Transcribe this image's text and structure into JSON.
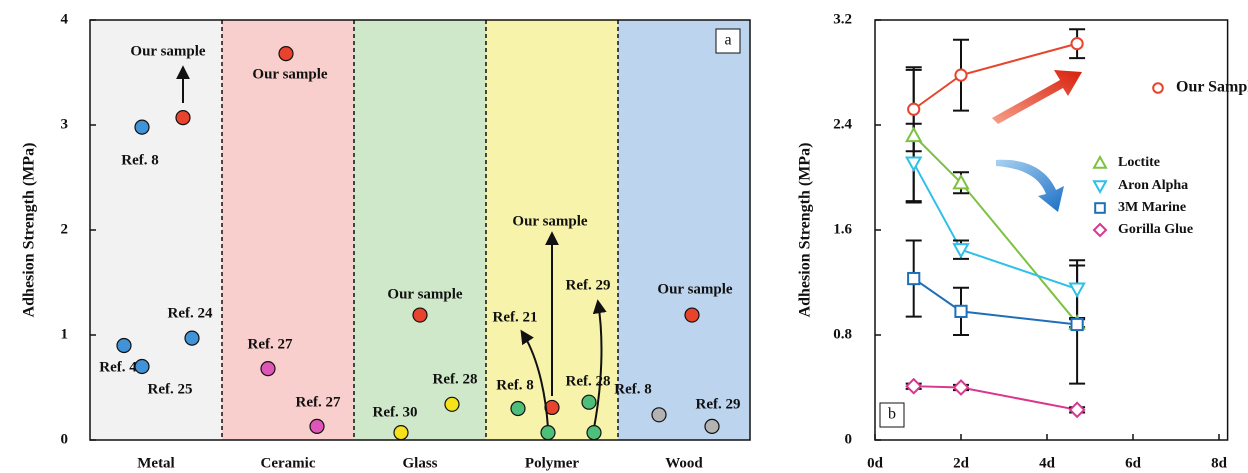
{
  "chart_data": [
    {
      "type": "strip",
      "panel_label": "a",
      "y_label": "Adhesion Strength (MPa)",
      "ylim": [
        0,
        4
      ],
      "yticks": [
        0,
        1,
        2,
        3,
        4
      ],
      "groups": [
        {
          "name": "Metal",
          "color": "#f2f2f2",
          "points": [
            {
              "label": "Ref. 8",
              "value": 2.98,
              "color": "#3f93d6"
            },
            {
              "label": "Our sample",
              "value": 3.07,
              "color": "#e8432c"
            },
            {
              "label": "Ref. 4",
              "value": 0.9,
              "color": "#3f93d6"
            },
            {
              "label": "Ref. 25",
              "value": 0.7,
              "color": "#3f93d6"
            },
            {
              "label": "Ref. 24",
              "value": 0.97,
              "color": "#3f93d6"
            }
          ]
        },
        {
          "name": "Ceramic",
          "color": "#f9cfcd",
          "points": [
            {
              "label": "Our sample",
              "value": 3.68,
              "color": "#e8432c"
            },
            {
              "label": "Ref. 27",
              "value": 0.68,
              "color": "#e056b8"
            },
            {
              "label": "Ref. 27",
              "value": 0.13,
              "color": "#e056b8"
            }
          ]
        },
        {
          "name": "Glass",
          "color": "#cfe8c9",
          "points": [
            {
              "label": "Our sample",
              "value": 1.19,
              "color": "#e8432c"
            },
            {
              "label": "Ref. 28",
              "value": 0.34,
              "color": "#f5e21a"
            },
            {
              "label": "Ref. 30",
              "value": 0.07,
              "color": "#f5e21a"
            }
          ]
        },
        {
          "name": "Polymer",
          "color": "#f7f3aa",
          "points": [
            {
              "label": "Ref. 8",
              "value": 0.3,
              "color": "#4dbf7a"
            },
            {
              "label": "Our sample",
              "value": 0.31,
              "color": "#e8432c"
            },
            {
              "label": "Ref. 28",
              "value": 0.36,
              "color": "#4dbf7a"
            },
            {
              "label": "Ref. 21",
              "value": 0.07,
              "color": "#4dbf7a"
            },
            {
              "label": "Ref. 29",
              "value": 0.07,
              "color": "#4dbf7a"
            }
          ]
        },
        {
          "name": "Wood",
          "color": "#bdd4ee",
          "points": [
            {
              "label": "Our sample",
              "value": 1.19,
              "color": "#e8432c"
            },
            {
              "label": "Ref. 8",
              "value": 0.24,
              "color": "#b3b3b3"
            },
            {
              "label": "Ref. 29",
              "value": 0.13,
              "color": "#b3b3b3"
            }
          ]
        }
      ]
    },
    {
      "type": "line",
      "panel_label": "b",
      "y_label": "Adhesion Strength (MPa)",
      "x": [
        0.9,
        2,
        4.7
      ],
      "xlim": [
        0,
        8.2
      ],
      "xticks": [
        {
          "value": 0,
          "label": "0d"
        },
        {
          "value": 2,
          "label": "2d"
        },
        {
          "value": 4,
          "label": "4d"
        },
        {
          "value": 6,
          "label": "6d"
        },
        {
          "value": 8,
          "label": "8d"
        }
      ],
      "ylim": [
        0,
        3.2
      ],
      "yticks": [
        0,
        0.8,
        1.6,
        2.4,
        3.2
      ],
      "series": [
        {
          "name": "Our Sample",
          "color": "#e8432c",
          "marker": "circle",
          "values": [
            2.52,
            2.78,
            3.02
          ],
          "errors": [
            0.32,
            0.27,
            0.11
          ]
        },
        {
          "name": "Loctite",
          "color": "#7cc242",
          "marker": "triangle-up",
          "values": [
            2.32,
            1.96,
            0.89
          ],
          "errors": [
            0.5,
            0.08,
            0.03
          ]
        },
        {
          "name": "Aron Alpha",
          "color": "#2ec0e8",
          "marker": "triangle-down",
          "values": [
            2.11,
            1.45,
            1.15
          ],
          "errors": [
            0.3,
            0.07,
            0.22
          ]
        },
        {
          "name": "3M Marine",
          "color": "#1f6fb8",
          "marker": "square",
          "values": [
            1.23,
            0.98,
            0.88
          ],
          "errors": [
            0.29,
            0.18,
            0.45
          ]
        },
        {
          "name": "Gorilla Glue",
          "color": "#d9368f",
          "marker": "diamond",
          "values": [
            0.41,
            0.4,
            0.23
          ],
          "errors": [
            0.02,
            0.02,
            0.02
          ]
        }
      ]
    }
  ]
}
